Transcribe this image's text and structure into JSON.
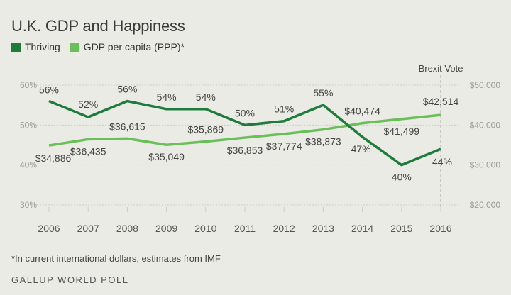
{
  "title": "U.K. GDP and Happiness",
  "footnote": "*In current international dollars, estimates from IMF",
  "source": "GALLUP WORLD POLL",
  "colors": {
    "thriving": "#1f7a3c",
    "gdp": "#6abf5a",
    "grid": "#cfcfc9",
    "brexit_line": "#a8a8a2"
  },
  "chart_data": {
    "type": "line",
    "x": [
      "2006",
      "2007",
      "2008",
      "2009",
      "2010",
      "2011",
      "2012",
      "2013",
      "2014",
      "2015",
      "2016"
    ],
    "series": [
      {
        "name": "Thriving",
        "axis": "left",
        "values": [
          56,
          52,
          56,
          54,
          54,
          50,
          51,
          55,
          47,
          40,
          44
        ],
        "labels": [
          "56%",
          "52%",
          "56%",
          "54%",
          "54%",
          "50%",
          "51%",
          "55%",
          "47%",
          "40%",
          "44%"
        ]
      },
      {
        "name": "GDP per capita (PPP)*",
        "axis": "right",
        "values": [
          34886,
          36435,
          36615,
          35049,
          35869,
          36853,
          37774,
          38873,
          40474,
          41499,
          42514
        ],
        "labels": [
          "$34,886",
          "$36,435",
          "$36,615",
          "$35,049",
          "$35,869",
          "$36,853",
          "$37,774",
          "$38,873",
          "$40,474",
          "$41,499",
          "$42,514"
        ]
      }
    ],
    "y_left": {
      "lim": [
        30,
        60
      ],
      "ticks": [
        "30%",
        "40%",
        "50%",
        "60%"
      ]
    },
    "y_right": {
      "lim": [
        20000,
        50000
      ],
      "ticks": [
        "$20,000",
        "$30,000",
        "$40,000",
        "$50,000"
      ]
    },
    "annotation": {
      "text": "Brexit Vote",
      "x": 2016
    },
    "grid": "horizontal",
    "legend": "top-left"
  }
}
